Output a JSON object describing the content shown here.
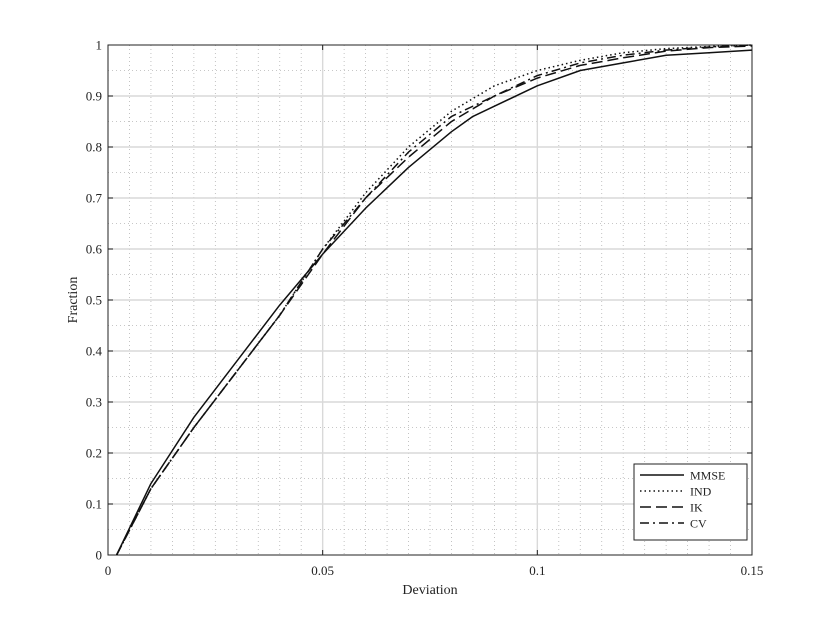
{
  "chart_data": {
    "type": "line",
    "title": "",
    "xlabel": "Deviation",
    "ylabel": "Fraction",
    "xlim": [
      0,
      0.15
    ],
    "ylim": [
      0,
      1
    ],
    "xticks": [
      "0",
      "0.05",
      "0.1",
      "0.15"
    ],
    "yticks": [
      "0",
      "0.1",
      "0.2",
      "0.3",
      "0.4",
      "0.5",
      "0.6",
      "0.7",
      "0.8",
      "0.9",
      "1"
    ],
    "grid": true,
    "minor_grid": true,
    "legend_position": "bottom-right",
    "series": [
      {
        "name": "MMSE",
        "style": "solid",
        "x": [
          0.002,
          0.01,
          0.02,
          0.03,
          0.04,
          0.05,
          0.06,
          0.07,
          0.08,
          0.085,
          0.09,
          0.1,
          0.11,
          0.12,
          0.13,
          0.14,
          0.15
        ],
        "y": [
          0,
          0.14,
          0.27,
          0.38,
          0.49,
          0.59,
          0.68,
          0.76,
          0.83,
          0.86,
          0.88,
          0.92,
          0.95,
          0.965,
          0.98,
          0.985,
          0.99
        ]
      },
      {
        "name": "IND",
        "style": "dotted",
        "x": [
          0.002,
          0.01,
          0.02,
          0.03,
          0.04,
          0.05,
          0.06,
          0.07,
          0.08,
          0.09,
          0.1,
          0.11,
          0.12,
          0.13,
          0.14,
          0.15
        ],
        "y": [
          0,
          0.13,
          0.25,
          0.36,
          0.47,
          0.6,
          0.71,
          0.8,
          0.87,
          0.92,
          0.95,
          0.97,
          0.985,
          0.993,
          0.997,
          1.0
        ]
      },
      {
        "name": "IK",
        "style": "dashed",
        "x": [
          0.002,
          0.01,
          0.02,
          0.03,
          0.04,
          0.05,
          0.06,
          0.07,
          0.08,
          0.09,
          0.1,
          0.11,
          0.12,
          0.13,
          0.14,
          0.15
        ],
        "y": [
          0,
          0.13,
          0.25,
          0.36,
          0.47,
          0.59,
          0.7,
          0.78,
          0.85,
          0.9,
          0.935,
          0.96,
          0.975,
          0.988,
          0.995,
          0.998
        ]
      },
      {
        "name": "CV",
        "style": "dashdot",
        "x": [
          0.002,
          0.01,
          0.02,
          0.03,
          0.04,
          0.05,
          0.06,
          0.07,
          0.08,
          0.09,
          0.1,
          0.11,
          0.12,
          0.13,
          0.14,
          0.15
        ],
        "y": [
          0,
          0.13,
          0.25,
          0.36,
          0.47,
          0.6,
          0.7,
          0.79,
          0.86,
          0.9,
          0.94,
          0.965,
          0.98,
          0.99,
          0.996,
          1.0
        ]
      }
    ]
  }
}
